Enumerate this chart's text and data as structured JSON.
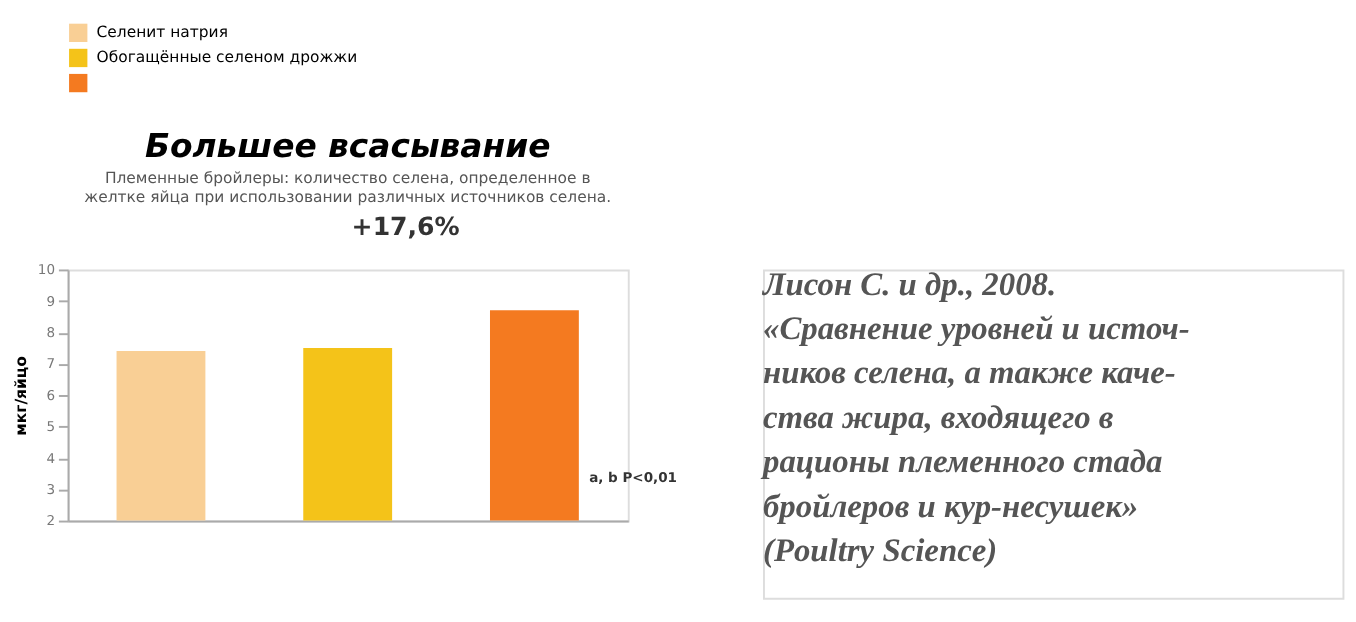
{
  "chart_data": {
    "type": "bar",
    "title": "Большее всасывание",
    "subtitle": [
      "Племенные бройлеры: количество селена, определенное в",
      "желтке яйца при использовании различных источников селена."
    ],
    "categories": [
      null,
      null,
      null
    ],
    "series": [
      {
        "name": "Селенит натрия",
        "color": "#f9cf95",
        "values": [
          7.4,
          null,
          null
        ]
      },
      {
        "name": "Обогащённые селеном дрожжи",
        "color": "#f4c319",
        "values": [
          null,
          7.5,
          null
        ]
      },
      {
        "color": "#f47a20",
        "values": [
          null,
          null,
          8.7
        ]
      }
    ],
    "ylabel": "мкг/яйцо",
    "ylim": [
      2,
      10
    ],
    "yticks": [
      2,
      3,
      4,
      5,
      6,
      7,
      8,
      9,
      10
    ],
    "grid": false,
    "legend": "top left",
    "annotations": [
      "+17,6%",
      "a, b P<0,01",
      "Лисон С. и др., 2008.\n«Сравнение уровней и источ-\nников селена, а также каче-\nства жира, входящего в\nрационы племенного стада\nбройлеров и кур-несушек»\n(Poultry Science)"
    ]
  }
}
